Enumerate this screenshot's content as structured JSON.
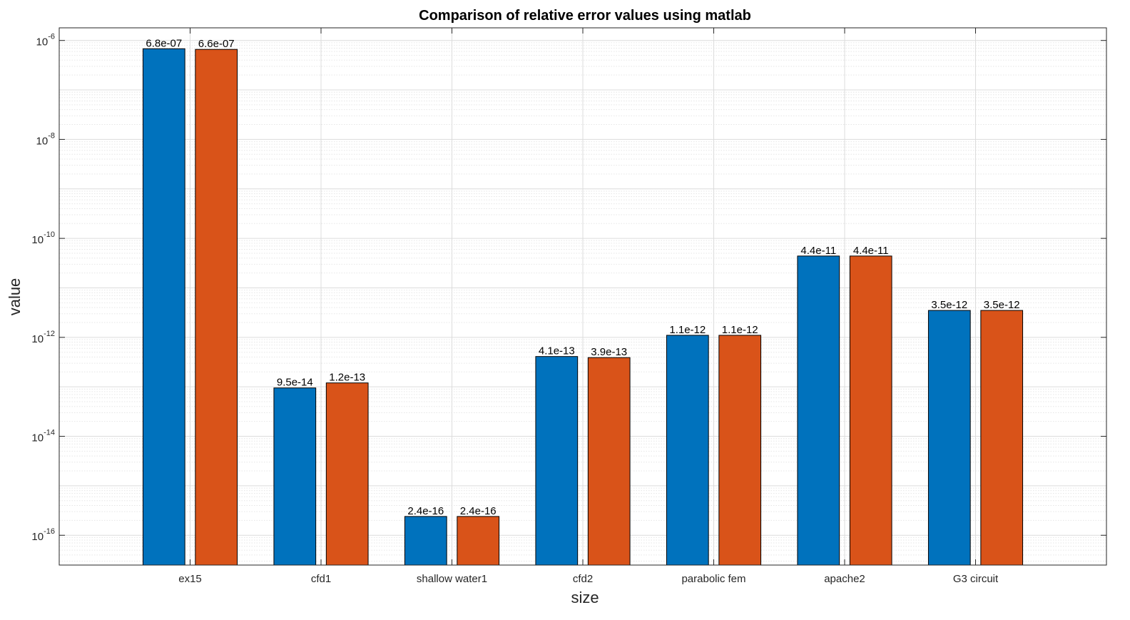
{
  "chart_data": {
    "type": "bar",
    "title": "Comparison of relative error values using matlab",
    "xlabel": "size",
    "ylabel": "value",
    "yscale": "log",
    "ylim": [
      2.5e-17,
      1.8e-06
    ],
    "categories": [
      "ex15",
      "cfd1",
      "shallow water1",
      "cfd2",
      "parabolic fem",
      "apache2",
      "G3 circuit"
    ],
    "series": [
      {
        "values": [
          6.8e-07,
          9.5e-14,
          2.4e-16,
          4.1e-13,
          1.1e-12,
          4.4e-11,
          3.5e-12
        ],
        "data_labels": [
          "6.8e-07",
          "9.5e-14",
          "2.4e-16",
          "4.1e-13",
          "1.1e-12",
          "4.4e-11",
          "3.5e-12"
        ],
        "color": "#0072BD"
      },
      {
        "values": [
          6.6e-07,
          1.2e-13,
          2.4e-16,
          3.9e-13,
          1.1e-12,
          4.4e-11,
          3.5e-12
        ],
        "data_labels": [
          "6.6e-07",
          "1.2e-13",
          "2.4e-16",
          "3.9e-13",
          "1.1e-12",
          "4.4e-11",
          "3.5e-12"
        ],
        "color": "#D95319"
      }
    ],
    "y_ticks": [
      -16,
      -14,
      -12,
      -10,
      -8,
      -6
    ],
    "y_tick_base": "10",
    "y_tick_exponents": [
      "-16",
      "-14",
      "-12",
      "-10",
      "-8",
      "-6"
    ],
    "grid": true,
    "minor_grid": true,
    "legend": "none"
  }
}
